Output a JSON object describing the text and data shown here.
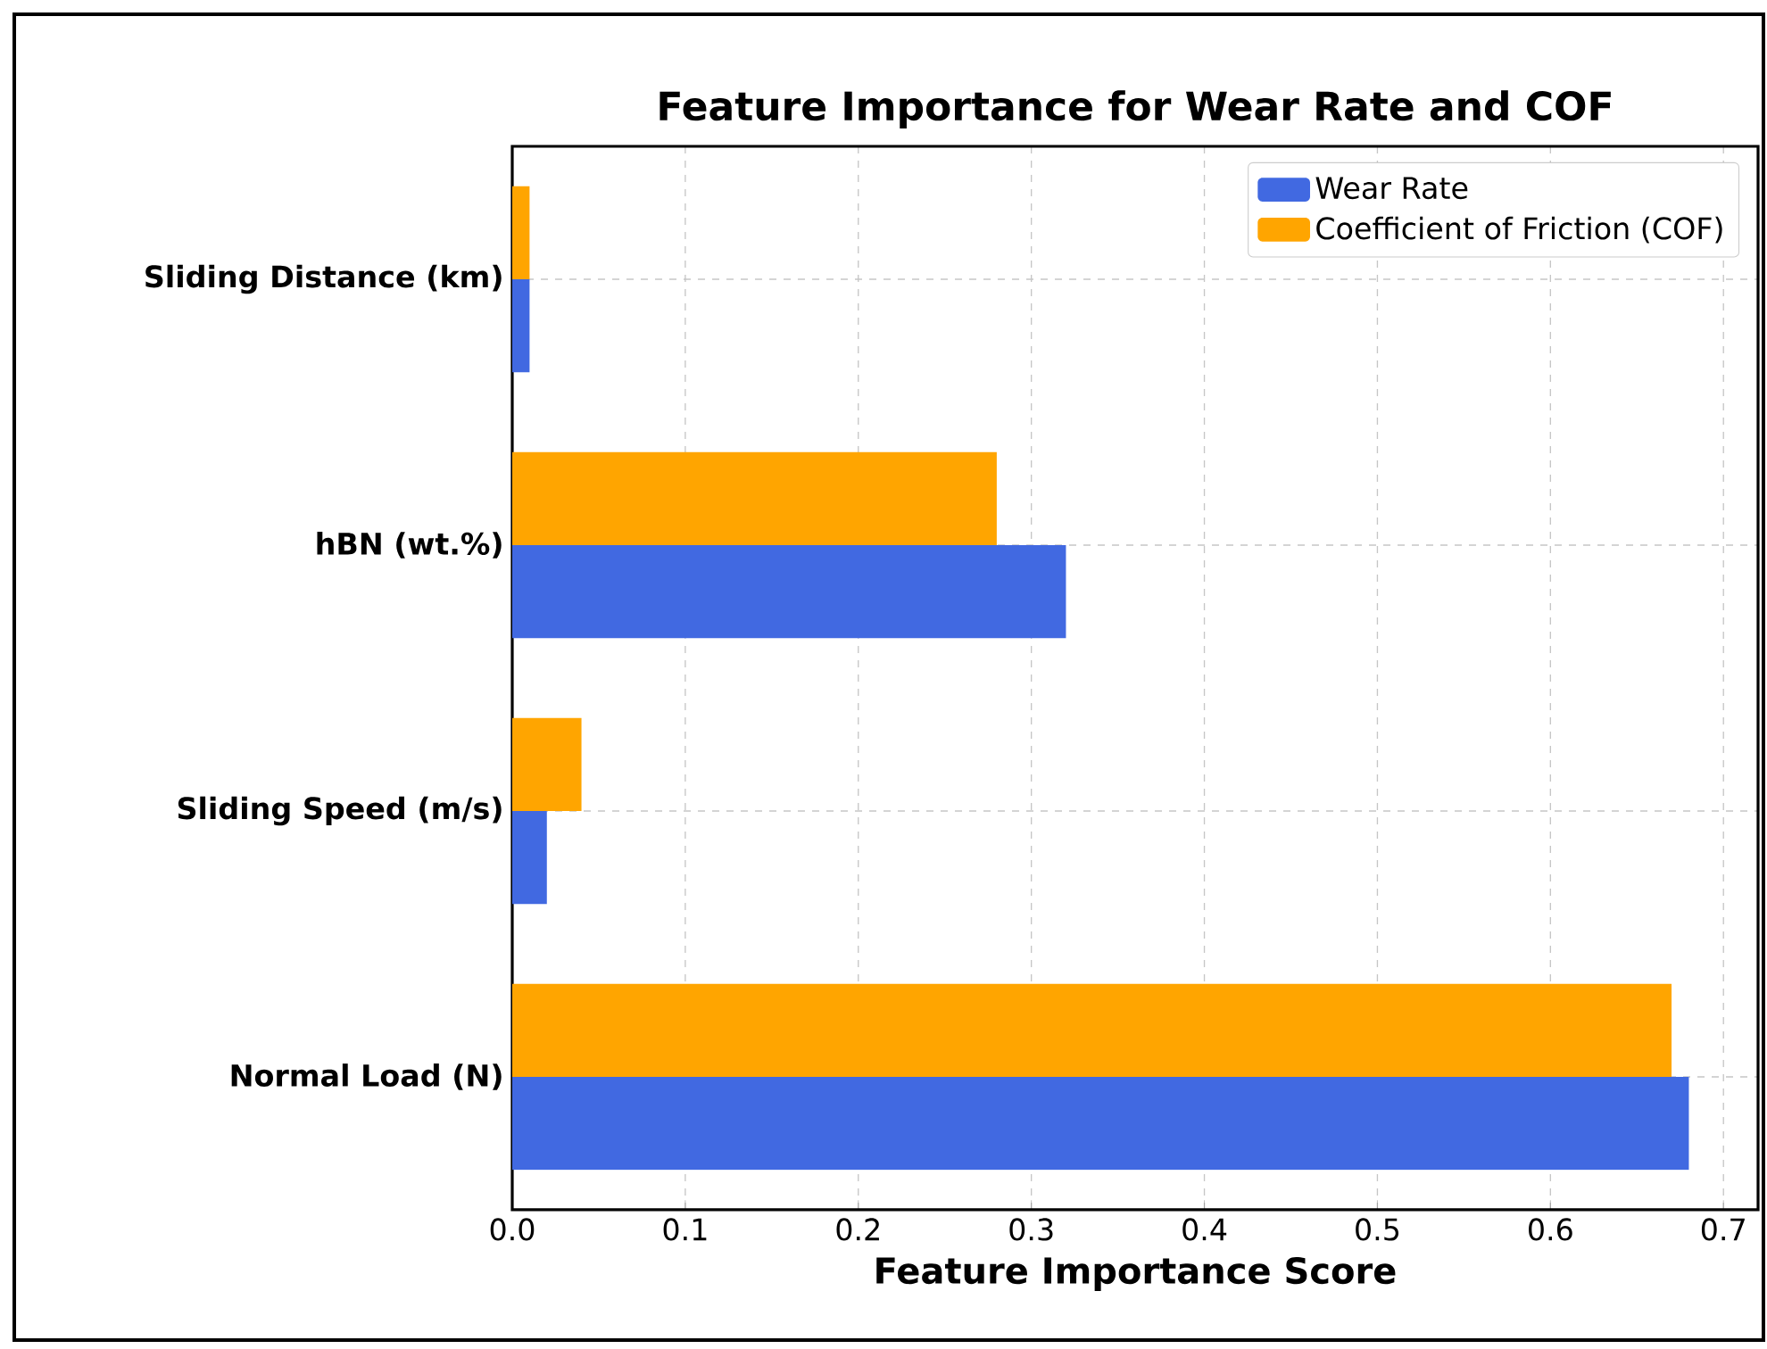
{
  "chart_data": {
    "type": "bar",
    "orientation": "horizontal",
    "title": "Feature Importance for Wear Rate and COF",
    "xlabel": "Feature Importance Score",
    "categories": [
      "Sliding Distance (km)",
      "hBN (wt.%)",
      "Sliding Speed (m/s)",
      "Normal Load (N)"
    ],
    "series": [
      {
        "name": "Wear Rate",
        "color": "#4169e1",
        "values": [
          0.01,
          0.32,
          0.02,
          0.68
        ]
      },
      {
        "name": "Coefficient of Friction (COF)",
        "color": "#ffa500",
        "values": [
          0.01,
          0.28,
          0.04,
          0.67
        ]
      }
    ],
    "xlim": [
      0,
      0.72
    ],
    "xticks": [
      {
        "value": 0,
        "label": "0.0"
      },
      0.1,
      0.2,
      0.3,
      0.4,
      0.5,
      0.6,
      0.7
    ],
    "grid": true,
    "legend": "top right"
  }
}
